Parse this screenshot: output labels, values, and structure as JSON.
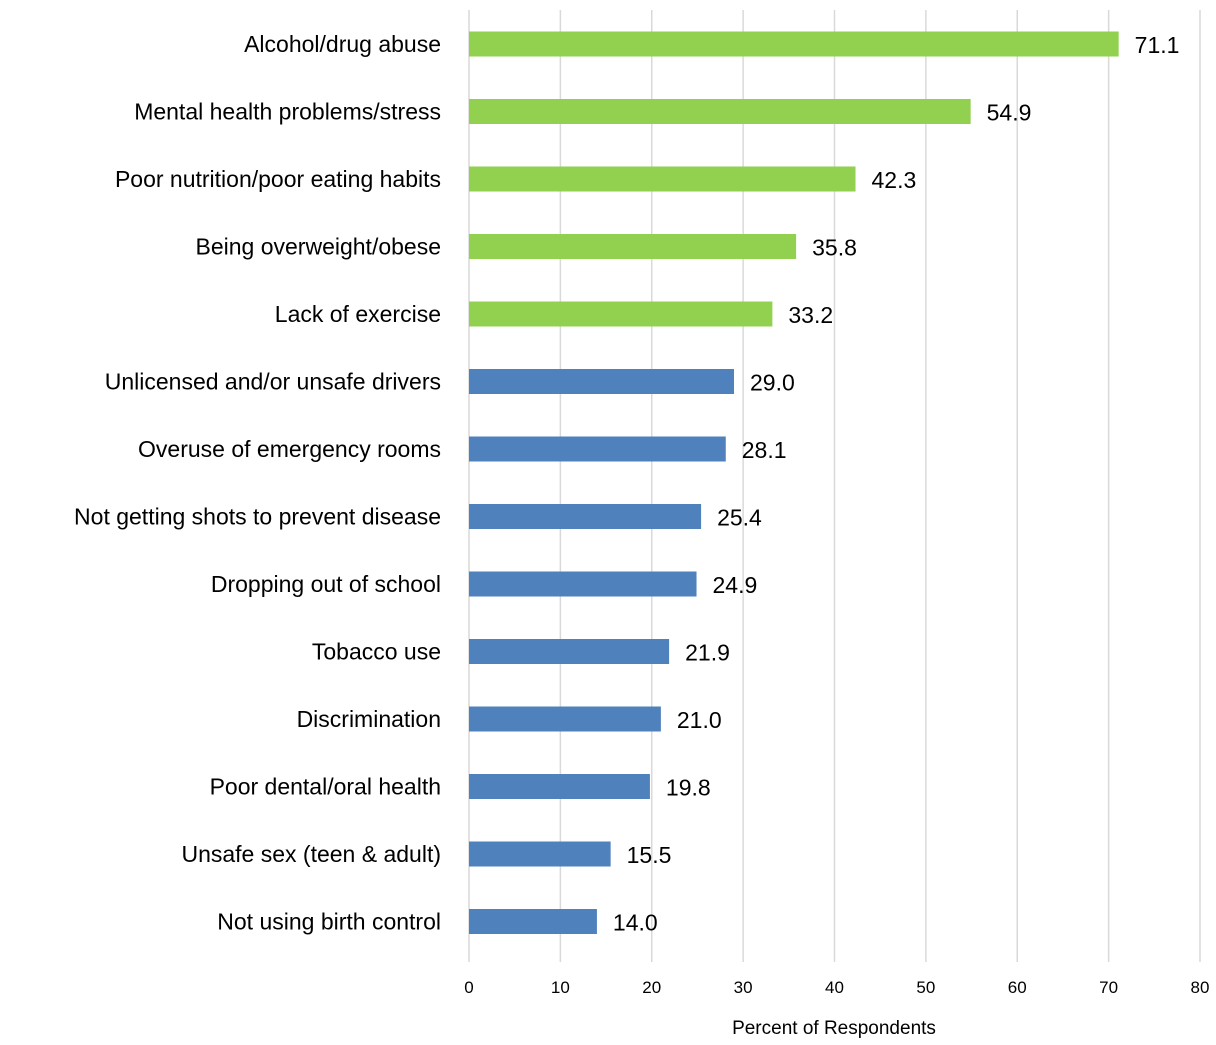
{
  "chart_data": {
    "type": "bar",
    "orientation": "horizontal",
    "title": "",
    "xlabel": "Percent of Respondents",
    "ylabel": "",
    "xlim": [
      0,
      80
    ],
    "x_ticks": [
      0,
      10,
      20,
      30,
      40,
      50,
      60,
      70,
      80
    ],
    "grid": "vertical",
    "legend": "none",
    "colors": {
      "top_five": "#92D050",
      "others": "#4F81BD",
      "grid": "#D9D9D9"
    },
    "categories": [
      "Alcohol/drug abuse",
      "Mental health problems/stress",
      "Poor nutrition/poor eating habits",
      "Being overweight/obese",
      "Lack of exercise",
      "Unlicensed and/or unsafe drivers",
      "Overuse of emergency rooms",
      "Not getting shots to prevent disease",
      "Dropping out of school",
      "Tobacco use",
      "Discrimination",
      "Poor dental/oral health",
      "Unsafe sex (teen & adult)",
      "Not using birth control"
    ],
    "values": [
      71.1,
      54.9,
      42.3,
      35.8,
      33.2,
      29.0,
      28.1,
      25.4,
      24.9,
      21.9,
      21.0,
      19.8,
      15.5,
      14.0
    ],
    "value_labels": [
      "71.1",
      "54.9",
      "42.3",
      "35.8",
      "33.2",
      "29.0",
      "28.1",
      "25.4",
      "24.9",
      "21.9",
      "21.0",
      "19.8",
      "15.5",
      "14.0"
    ],
    "bar_colors": [
      "#92D050",
      "#92D050",
      "#92D050",
      "#92D050",
      "#92D050",
      "#4F81BD",
      "#4F81BD",
      "#4F81BD",
      "#4F81BD",
      "#4F81BD",
      "#4F81BD",
      "#4F81BD",
      "#4F81BD",
      "#4F81BD"
    ]
  }
}
